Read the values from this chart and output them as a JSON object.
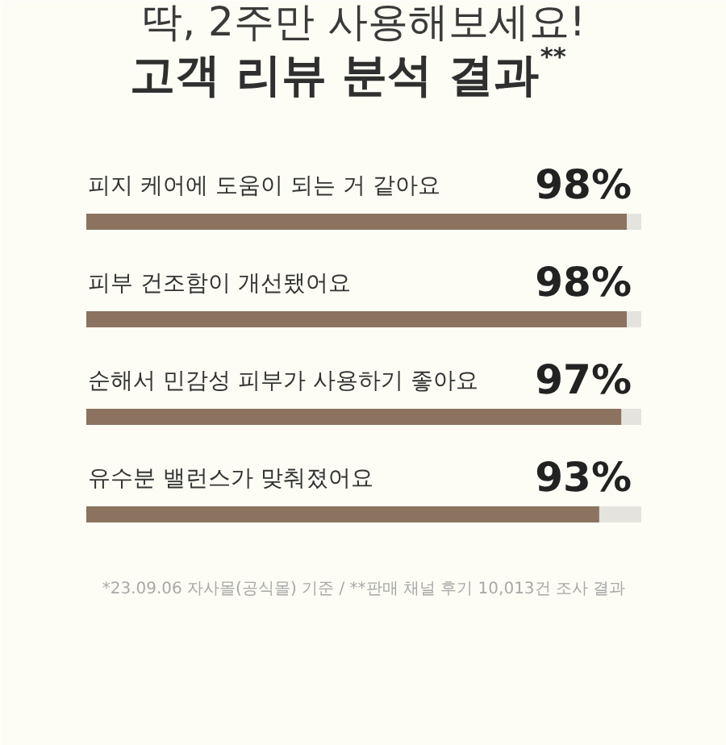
{
  "chart_data": {
    "type": "bar",
    "orientation": "horizontal",
    "title": "딱, 2주만 사용해보세요!",
    "subtitle": "고객 리뷰 분석 결과$^{**}$",
    "categories": [
      "피지 케어에 도움이 되는 거 같아요",
      "피부 건조함이 개선됐어요",
      "순해서 민감성 피부가 사용하기 좋아요",
      "유수분 밸런스가 맞춰졌어요"
    ],
    "values": [
      98,
      98,
      97,
      93
    ],
    "color": "#8b735f",
    "value_labels": [
      "98%",
      "98%",
      "97%",
      "93%"
    ],
    "annotations": [
      "*23.09.06 자사몰(공식몰) 기준 / **판매 채널 후기 10,013건 조사 결과"
    ]
  }
}
